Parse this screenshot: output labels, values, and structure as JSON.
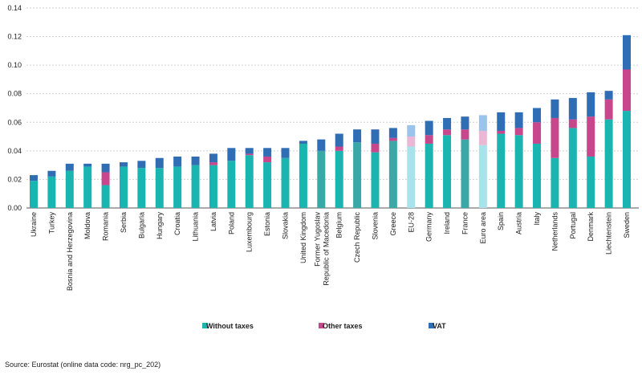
{
  "chart_data": {
    "type": "bar",
    "stacked": true,
    "ylim": [
      0,
      0.14
    ],
    "yticks": [
      "0.00",
      "0.02",
      "0.04",
      "0.06",
      "0.08",
      "0.10",
      "0.12",
      "0.14"
    ],
    "grid": true,
    "legend_position": "bottom",
    "categories": [
      "Ukraine",
      "Turkey",
      "Bosnia and Herzegovina",
      "Moldova",
      "Romania",
      "Serbia",
      "Bulgaria",
      "Hungary",
      "Croatia",
      "Lithuania",
      "Latvia",
      "Poland",
      "Luxembourg",
      "Estonia",
      "Slovakia",
      "United Kingdom",
      "Former Yugoslav\nRepublic of Macedonia",
      "Belgium",
      "Czech Republic",
      "Slovenia",
      "Greece",
      "EU-28",
      "Germany",
      "Ireland",
      "France",
      "Euro area",
      "Spain",
      "Austria",
      "Italy",
      "Netherlands",
      "Portugal",
      "Denmark",
      "Liechtenstein",
      "Sweden"
    ],
    "series": [
      {
        "name": "Without taxes",
        "color": "#1ab5b0",
        "values": [
          0.019,
          0.022,
          0.026,
          0.029,
          0.016,
          0.029,
          0.028,
          0.028,
          0.029,
          0.03,
          0.03,
          0.033,
          0.037,
          0.032,
          0.035,
          0.045,
          0.04,
          0.04,
          0.046,
          0.039,
          0.047,
          0.043,
          0.045,
          0.051,
          0.048,
          0.044,
          0.052,
          0.051,
          0.045,
          0.035,
          0.056,
          0.036,
          0.062,
          0.068
        ]
      },
      {
        "name": "Other taxes",
        "color": "#c8468c",
        "values": [
          0.0,
          0.0,
          0.0,
          0.0,
          0.009,
          0.0,
          0.0,
          0.0,
          0.0,
          0.0,
          0.002,
          0.0,
          0.001,
          0.004,
          0.0,
          0.0,
          0.0,
          0.003,
          0.0,
          0.006,
          0.002,
          0.007,
          0.006,
          0.004,
          0.007,
          0.01,
          0.002,
          0.005,
          0.015,
          0.028,
          0.006,
          0.028,
          0.014,
          0.029
        ]
      },
      {
        "name": "VAT",
        "color": "#2f6db5",
        "values": [
          0.004,
          0.004,
          0.005,
          0.002,
          0.006,
          0.003,
          0.005,
          0.007,
          0.007,
          0.006,
          0.006,
          0.009,
          0.004,
          0.006,
          0.007,
          0.002,
          0.008,
          0.009,
          0.009,
          0.01,
          0.007,
          0.008,
          0.01,
          0.008,
          0.009,
          0.011,
          0.013,
          0.011,
          0.01,
          0.013,
          0.015,
          0.017,
          0.006,
          0.024
        ]
      }
    ],
    "highlighted_categories": [
      "Former Yugoslav\nRepublic of Macedonia",
      "Czech Republic",
      "Greece",
      "France"
    ],
    "aggregate_categories": [
      "EU-28",
      "Euro area"
    ],
    "highlight_colors": {
      "Without taxes": "#3aa8a6",
      "Other taxes": "#c8468c",
      "VAT": "#2f6db5"
    },
    "aggregate_colors": {
      "Without taxes": "#a8e2ea",
      "Other taxes": "#eab8d4",
      "VAT": "#9cc3ea"
    }
  },
  "footer": {
    "source": "Source: Eurostat (online data code: nrg_pc_202)"
  }
}
